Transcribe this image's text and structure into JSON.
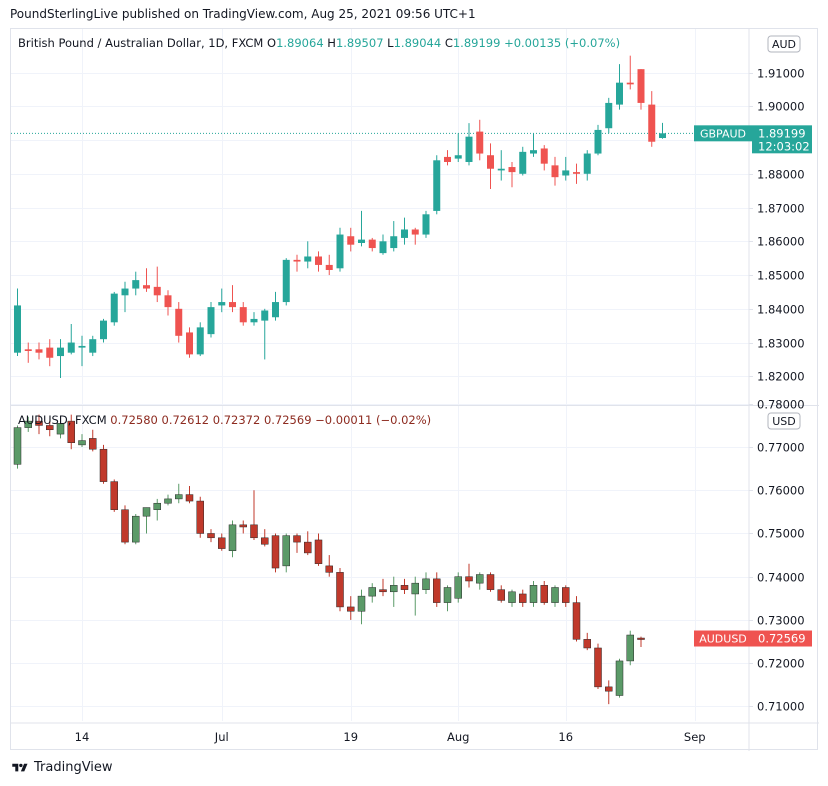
{
  "header": {
    "publisher": "PoundSterlingLive published on TradingView.com, Aug 25, 2021 09:56 UTC+1"
  },
  "footer": {
    "brand": "TradingView"
  },
  "colors": {
    "up": "#26a69a",
    "down": "#ef5350",
    "up2": "#5b9a68",
    "down2": "#c0392b",
    "grid": "#f0f3fa",
    "axis": "#e0e3eb",
    "text": "#131722"
  },
  "chart_data": [
    {
      "type": "candlestick",
      "title": "British Pound / Australian Dollar, 1D, FXCM",
      "currency": "AUD",
      "ohlc_labels": {
        "O": "1.89064",
        "H": "1.89507",
        "L": "1.89044",
        "C": "1.89199",
        "change": "+0.00135 (+0.07%)"
      },
      "last_price_label": {
        "symbol": "GBPAUD",
        "price": "1.89199",
        "countdown": "12:03:02"
      },
      "y_ticks": [
        1.91,
        1.9,
        1.89,
        1.88,
        1.87,
        1.86,
        1.85,
        1.84,
        1.83,
        1.82
      ],
      "y_tick_labels": [
        "1.91000",
        "1.90000",
        "1.89000",
        "1.88000",
        "1.87000",
        "1.86000",
        "1.85000",
        "1.84000",
        "1.83000",
        "1.82000"
      ],
      "ylim": [
        1.8115,
        1.9229
      ],
      "last_price": 1.89199,
      "candles": [
        {
          "o": 1.827,
          "h": 1.846,
          "l": 1.826,
          "c": 1.841
        },
        {
          "o": 1.828,
          "h": 1.83,
          "l": 1.824,
          "c": 1.8275
        },
        {
          "o": 1.828,
          "h": 1.83,
          "l": 1.825,
          "c": 1.827
        },
        {
          "o": 1.8285,
          "h": 1.831,
          "l": 1.823,
          "c": 1.8255
        },
        {
          "o": 1.826,
          "h": 1.831,
          "l": 1.8195,
          "c": 1.8285
        },
        {
          "o": 1.827,
          "h": 1.8355,
          "l": 1.8265,
          "c": 1.83
        },
        {
          "o": 1.8285,
          "h": 1.832,
          "l": 1.823,
          "c": 1.829
        },
        {
          "o": 1.827,
          "h": 1.832,
          "l": 1.826,
          "c": 1.831
        },
        {
          "o": 1.831,
          "h": 1.837,
          "l": 1.83,
          "c": 1.8365
        },
        {
          "o": 1.836,
          "h": 1.845,
          "l": 1.835,
          "c": 1.8445
        },
        {
          "o": 1.844,
          "h": 1.848,
          "l": 1.839,
          "c": 1.846
        },
        {
          "o": 1.846,
          "h": 1.851,
          "l": 1.844,
          "c": 1.8485
        },
        {
          "o": 1.847,
          "h": 1.852,
          "l": 1.845,
          "c": 1.846
        },
        {
          "o": 1.8465,
          "h": 1.8525,
          "l": 1.842,
          "c": 1.844
        },
        {
          "o": 1.844,
          "h": 1.8455,
          "l": 1.838,
          "c": 1.8405
        },
        {
          "o": 1.84,
          "h": 1.842,
          "l": 1.83,
          "c": 1.832
        },
        {
          "o": 1.833,
          "h": 1.8345,
          "l": 1.8255,
          "c": 1.8265
        },
        {
          "o": 1.8265,
          "h": 1.836,
          "l": 1.826,
          "c": 1.8345
        },
        {
          "o": 1.8325,
          "h": 1.842,
          "l": 1.8315,
          "c": 1.8405
        },
        {
          "o": 1.841,
          "h": 1.846,
          "l": 1.839,
          "c": 1.842
        },
        {
          "o": 1.842,
          "h": 1.847,
          "l": 1.839,
          "c": 1.8405
        },
        {
          "o": 1.8405,
          "h": 1.842,
          "l": 1.835,
          "c": 1.836
        },
        {
          "o": 1.836,
          "h": 1.839,
          "l": 1.835,
          "c": 1.837
        },
        {
          "o": 1.8365,
          "h": 1.84,
          "l": 1.825,
          "c": 1.8395
        },
        {
          "o": 1.8375,
          "h": 1.845,
          "l": 1.8365,
          "c": 1.842
        },
        {
          "o": 1.842,
          "h": 1.855,
          "l": 1.841,
          "c": 1.8545
        },
        {
          "o": 1.8545,
          "h": 1.856,
          "l": 1.851,
          "c": 1.854
        },
        {
          "o": 1.854,
          "h": 1.86,
          "l": 1.852,
          "c": 1.8555
        },
        {
          "o": 1.8555,
          "h": 1.857,
          "l": 1.851,
          "c": 1.853
        },
        {
          "o": 1.853,
          "h": 1.856,
          "l": 1.85,
          "c": 1.8515
        },
        {
          "o": 1.852,
          "h": 1.864,
          "l": 1.851,
          "c": 1.862
        },
        {
          "o": 1.8615,
          "h": 1.864,
          "l": 1.857,
          "c": 1.859
        },
        {
          "o": 1.8595,
          "h": 1.869,
          "l": 1.8585,
          "c": 1.8605
        },
        {
          "o": 1.8605,
          "h": 1.861,
          "l": 1.857,
          "c": 1.858
        },
        {
          "o": 1.8565,
          "h": 1.862,
          "l": 1.856,
          "c": 1.86
        },
        {
          "o": 1.858,
          "h": 1.866,
          "l": 1.857,
          "c": 1.8615
        },
        {
          "o": 1.861,
          "h": 1.867,
          "l": 1.859,
          "c": 1.8635
        },
        {
          "o": 1.8635,
          "h": 1.864,
          "l": 1.859,
          "c": 1.862
        },
        {
          "o": 1.862,
          "h": 1.869,
          "l": 1.861,
          "c": 1.868
        },
        {
          "o": 1.869,
          "h": 1.8855,
          "l": 1.868,
          "c": 1.884
        },
        {
          "o": 1.885,
          "h": 1.887,
          "l": 1.8825,
          "c": 1.8835
        },
        {
          "o": 1.8845,
          "h": 1.892,
          "l": 1.8835,
          "c": 1.8855
        },
        {
          "o": 1.8835,
          "h": 1.895,
          "l": 1.8825,
          "c": 1.891
        },
        {
          "o": 1.8925,
          "h": 1.896,
          "l": 1.884,
          "c": 1.886
        },
        {
          "o": 1.8855,
          "h": 1.889,
          "l": 1.8755,
          "c": 1.8815
        },
        {
          "o": 1.881,
          "h": 1.887,
          "l": 1.878,
          "c": 1.8815
        },
        {
          "o": 1.882,
          "h": 1.8835,
          "l": 1.876,
          "c": 1.8805
        },
        {
          "o": 1.88,
          "h": 1.888,
          "l": 1.8795,
          "c": 1.8865
        },
        {
          "o": 1.886,
          "h": 1.892,
          "l": 1.885,
          "c": 1.887
        },
        {
          "o": 1.8875,
          "h": 1.8885,
          "l": 1.881,
          "c": 1.883
        },
        {
          "o": 1.8825,
          "h": 1.885,
          "l": 1.8765,
          "c": 1.879
        },
        {
          "o": 1.8795,
          "h": 1.885,
          "l": 1.878,
          "c": 1.881
        },
        {
          "o": 1.8805,
          "h": 1.883,
          "l": 1.877,
          "c": 1.88
        },
        {
          "o": 1.88,
          "h": 1.887,
          "l": 1.878,
          "c": 1.886
        },
        {
          "o": 1.886,
          "h": 1.8945,
          "l": 1.8855,
          "c": 1.893
        },
        {
          "o": 1.8935,
          "h": 1.9025,
          "l": 1.892,
          "c": 1.901
        },
        {
          "o": 1.9005,
          "h": 1.9125,
          "l": 1.899,
          "c": 1.907
        },
        {
          "o": 1.907,
          "h": 1.915,
          "l": 1.905,
          "c": 1.9065
        },
        {
          "o": 1.911,
          "h": 1.911,
          "l": 1.899,
          "c": 1.901
        },
        {
          "o": 1.9005,
          "h": 1.9045,
          "l": 1.888,
          "c": 1.8895
        },
        {
          "o": 1.8906,
          "h": 1.8951,
          "l": 1.8904,
          "c": 1.892
        }
      ],
      "x_ticks": [
        {
          "label": "14",
          "index": 6
        },
        {
          "label": "Jul",
          "index": 19
        },
        {
          "label": "19",
          "index": 31
        },
        {
          "label": "Aug",
          "index": 41
        },
        {
          "label": "16",
          "index": 51
        },
        {
          "label": "Sep",
          "index": 63
        }
      ]
    },
    {
      "type": "candlestick",
      "title": "AUDUSD, FXCM",
      "currency": "USD",
      "ohlc_labels": {
        "O": "0.72580",
        "H": "0.72612",
        "L": "0.72372",
        "C": "0.72569",
        "change": "−0.00011 (−0.02%)"
      },
      "last_price_label": {
        "symbol": "AUDUSD",
        "price": "0.72569"
      },
      "y_ticks": [
        0.78,
        0.77,
        0.76,
        0.75,
        0.74,
        0.73,
        0.72,
        0.71
      ],
      "y_tick_labels": [
        "0.78000",
        "0.77000",
        "0.76000",
        "0.75000",
        "0.74000",
        "0.73000",
        "0.72000",
        "0.71000"
      ],
      "ylim": [
        0.7066,
        0.7795
      ],
      "last_price": 0.72569,
      "candles": [
        {
          "o": 0.766,
          "h": 0.775,
          "l": 0.765,
          "c": 0.7745
        },
        {
          "o": 0.7745,
          "h": 0.777,
          "l": 0.7735,
          "c": 0.776
        },
        {
          "o": 0.776,
          "h": 0.7775,
          "l": 0.773,
          "c": 0.775
        },
        {
          "o": 0.775,
          "h": 0.776,
          "l": 0.7725,
          "c": 0.774
        },
        {
          "o": 0.773,
          "h": 0.777,
          "l": 0.772,
          "c": 0.7755
        },
        {
          "o": 0.776,
          "h": 0.7775,
          "l": 0.7695,
          "c": 0.771
        },
        {
          "o": 0.7705,
          "h": 0.773,
          "l": 0.77,
          "c": 0.7715
        },
        {
          "o": 0.772,
          "h": 0.774,
          "l": 0.769,
          "c": 0.7695
        },
        {
          "o": 0.7695,
          "h": 0.7705,
          "l": 0.7615,
          "c": 0.762
        },
        {
          "o": 0.762,
          "h": 0.7625,
          "l": 0.755,
          "c": 0.7555
        },
        {
          "o": 0.7555,
          "h": 0.7565,
          "l": 0.7475,
          "c": 0.748
        },
        {
          "o": 0.748,
          "h": 0.7545,
          "l": 0.7475,
          "c": 0.754
        },
        {
          "o": 0.754,
          "h": 0.756,
          "l": 0.75,
          "c": 0.756
        },
        {
          "o": 0.7555,
          "h": 0.758,
          "l": 0.753,
          "c": 0.757
        },
        {
          "o": 0.757,
          "h": 0.759,
          "l": 0.7565,
          "c": 0.758
        },
        {
          "o": 0.758,
          "h": 0.7615,
          "l": 0.757,
          "c": 0.759
        },
        {
          "o": 0.759,
          "h": 0.761,
          "l": 0.757,
          "c": 0.7575
        },
        {
          "o": 0.7575,
          "h": 0.7585,
          "l": 0.749,
          "c": 0.75
        },
        {
          "o": 0.75,
          "h": 0.751,
          "l": 0.748,
          "c": 0.749
        },
        {
          "o": 0.749,
          "h": 0.75,
          "l": 0.746,
          "c": 0.7465
        },
        {
          "o": 0.746,
          "h": 0.753,
          "l": 0.7445,
          "c": 0.752
        },
        {
          "o": 0.752,
          "h": 0.753,
          "l": 0.75,
          "c": 0.7515
        },
        {
          "o": 0.752,
          "h": 0.76,
          "l": 0.7485,
          "c": 0.749
        },
        {
          "o": 0.749,
          "h": 0.751,
          "l": 0.747,
          "c": 0.7475
        },
        {
          "o": 0.7495,
          "h": 0.75,
          "l": 0.741,
          "c": 0.742
        },
        {
          "o": 0.7425,
          "h": 0.75,
          "l": 0.741,
          "c": 0.7495
        },
        {
          "o": 0.7495,
          "h": 0.75,
          "l": 0.7455,
          "c": 0.748
        },
        {
          "o": 0.748,
          "h": 0.7505,
          "l": 0.745,
          "c": 0.7455
        },
        {
          "o": 0.7485,
          "h": 0.75,
          "l": 0.7425,
          "c": 0.743
        },
        {
          "o": 0.7425,
          "h": 0.745,
          "l": 0.74,
          "c": 0.741
        },
        {
          "o": 0.741,
          "h": 0.742,
          "l": 0.732,
          "c": 0.733
        },
        {
          "o": 0.733,
          "h": 0.7355,
          "l": 0.73,
          "c": 0.732
        },
        {
          "o": 0.732,
          "h": 0.737,
          "l": 0.729,
          "c": 0.7355
        },
        {
          "o": 0.7355,
          "h": 0.7385,
          "l": 0.734,
          "c": 0.7375
        },
        {
          "o": 0.737,
          "h": 0.7395,
          "l": 0.7355,
          "c": 0.7365
        },
        {
          "o": 0.7365,
          "h": 0.74,
          "l": 0.733,
          "c": 0.738
        },
        {
          "o": 0.738,
          "h": 0.7395,
          "l": 0.736,
          "c": 0.737
        },
        {
          "o": 0.736,
          "h": 0.74,
          "l": 0.731,
          "c": 0.7385
        },
        {
          "o": 0.737,
          "h": 0.741,
          "l": 0.736,
          "c": 0.7395
        },
        {
          "o": 0.7395,
          "h": 0.741,
          "l": 0.733,
          "c": 0.734
        },
        {
          "o": 0.734,
          "h": 0.738,
          "l": 0.732,
          "c": 0.7375
        },
        {
          "o": 0.735,
          "h": 0.741,
          "l": 0.734,
          "c": 0.74
        },
        {
          "o": 0.74,
          "h": 0.743,
          "l": 0.7375,
          "c": 0.739
        },
        {
          "o": 0.7385,
          "h": 0.741,
          "l": 0.737,
          "c": 0.7405
        },
        {
          "o": 0.7405,
          "h": 0.741,
          "l": 0.7365,
          "c": 0.737
        },
        {
          "o": 0.737,
          "h": 0.738,
          "l": 0.734,
          "c": 0.7345
        },
        {
          "o": 0.734,
          "h": 0.737,
          "l": 0.733,
          "c": 0.7365
        },
        {
          "o": 0.736,
          "h": 0.737,
          "l": 0.733,
          "c": 0.734
        },
        {
          "o": 0.734,
          "h": 0.739,
          "l": 0.733,
          "c": 0.738
        },
        {
          "o": 0.738,
          "h": 0.739,
          "l": 0.7335,
          "c": 0.734
        },
        {
          "o": 0.734,
          "h": 0.738,
          "l": 0.733,
          "c": 0.7375
        },
        {
          "o": 0.7375,
          "h": 0.738,
          "l": 0.733,
          "c": 0.734
        },
        {
          "o": 0.734,
          "h": 0.7355,
          "l": 0.725,
          "c": 0.7255
        },
        {
          "o": 0.7255,
          "h": 0.727,
          "l": 0.723,
          "c": 0.7235
        },
        {
          "o": 0.7235,
          "h": 0.7245,
          "l": 0.714,
          "c": 0.7145
        },
        {
          "o": 0.7145,
          "h": 0.716,
          "l": 0.7105,
          "c": 0.7135
        },
        {
          "o": 0.7125,
          "h": 0.721,
          "l": 0.712,
          "c": 0.7205
        },
        {
          "o": 0.7205,
          "h": 0.7275,
          "l": 0.7195,
          "c": 0.7265
        },
        {
          "o": 0.7258,
          "h": 0.72612,
          "l": 0.72372,
          "c": 0.72569
        }
      ],
      "x_ticks": [
        {
          "label": "14",
          "index": 6
        },
        {
          "label": "Jul",
          "index": 19
        },
        {
          "label": "19",
          "index": 31
        },
        {
          "label": "Aug",
          "index": 41
        },
        {
          "label": "16",
          "index": 51
        },
        {
          "label": "Sep",
          "index": 63
        }
      ]
    }
  ]
}
